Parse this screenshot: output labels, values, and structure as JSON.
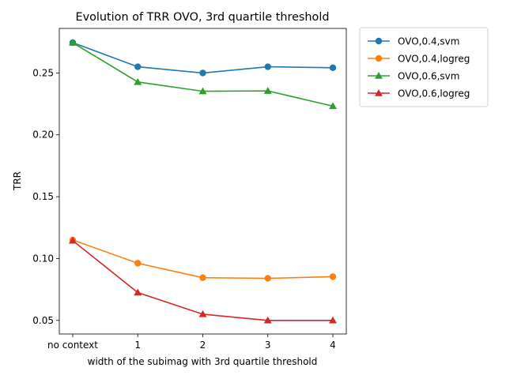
{
  "chart_data": {
    "type": "line",
    "title": "Evolution of TRR OVO,  3rd quartile threshold",
    "xlabel": "width of the subimag with 3rd quartile threshold",
    "ylabel": "TRR",
    "categories": [
      "no context",
      "1",
      "2",
      "3",
      "4"
    ],
    "ylim": [
      0.039,
      0.286
    ],
    "yticks": [
      0.05,
      0.1,
      0.15,
      0.2,
      0.25
    ],
    "ytick_labels": [
      "0.05",
      "0.10",
      "0.15",
      "0.20",
      "0.25"
    ],
    "grid": false,
    "legend_position": "outside-right-top",
    "series": [
      {
        "name": "OVO,0.4,svm",
        "color": "#1f77b4",
        "marker": "circle",
        "values": [
          0.2745,
          0.255,
          0.25,
          0.255,
          0.2542
        ]
      },
      {
        "name": "OVO,0.4,logreg",
        "color": "#ff7f0e",
        "marker": "circle",
        "values": [
          0.115,
          0.0962,
          0.0845,
          0.084,
          0.0853
        ]
      },
      {
        "name": "OVO,0.6,svm",
        "color": "#2ca02c",
        "marker": "triangle",
        "values": [
          0.2745,
          0.2427,
          0.2352,
          0.2355,
          0.2232
        ]
      },
      {
        "name": "OVO,0.6,logreg",
        "color": "#d62728",
        "marker": "triangle",
        "values": [
          0.1145,
          0.0725,
          0.055,
          0.05,
          0.05
        ]
      }
    ]
  }
}
